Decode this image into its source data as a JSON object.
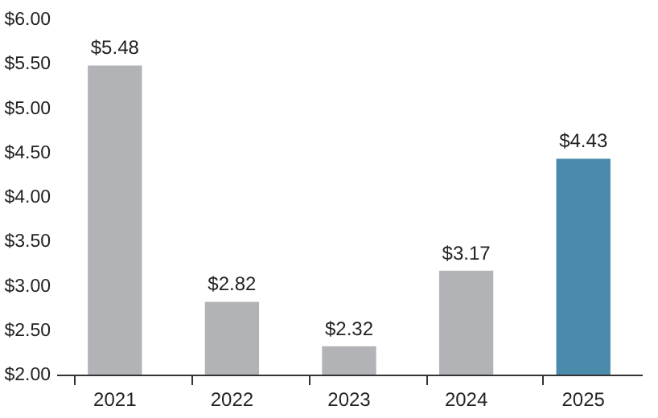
{
  "chart_data": {
    "type": "bar",
    "categories": [
      "2021",
      "2022",
      "2023",
      "2024",
      "2025"
    ],
    "values": [
      5.48,
      2.82,
      2.32,
      3.17,
      4.43
    ],
    "colors": [
      "#b2b3b6",
      "#b2b3b6",
      "#b2b3b6",
      "#b2b3b6",
      "#4a8bab"
    ],
    "value_labels": [
      "$5.48",
      "$2.82",
      "$2.32",
      "$3.17",
      "$4.43"
    ],
    "ylim": [
      2,
      6
    ],
    "yticks": [
      {
        "value": 2,
        "label": "$2.00"
      },
      {
        "value": 2.5,
        "label": "$2.50"
      },
      {
        "value": 3,
        "label": "$3.00"
      },
      {
        "value": 3.5,
        "label": "$3.50"
      },
      {
        "value": 4,
        "label": "$4.00"
      },
      {
        "value": 4.5,
        "label": "$4.50"
      },
      {
        "value": 5,
        "label": "$5.00"
      },
      {
        "value": 5.5,
        "label": "$5.50"
      },
      {
        "value": 6,
        "label": "$6.00"
      }
    ],
    "grid": false,
    "legend": false
  }
}
